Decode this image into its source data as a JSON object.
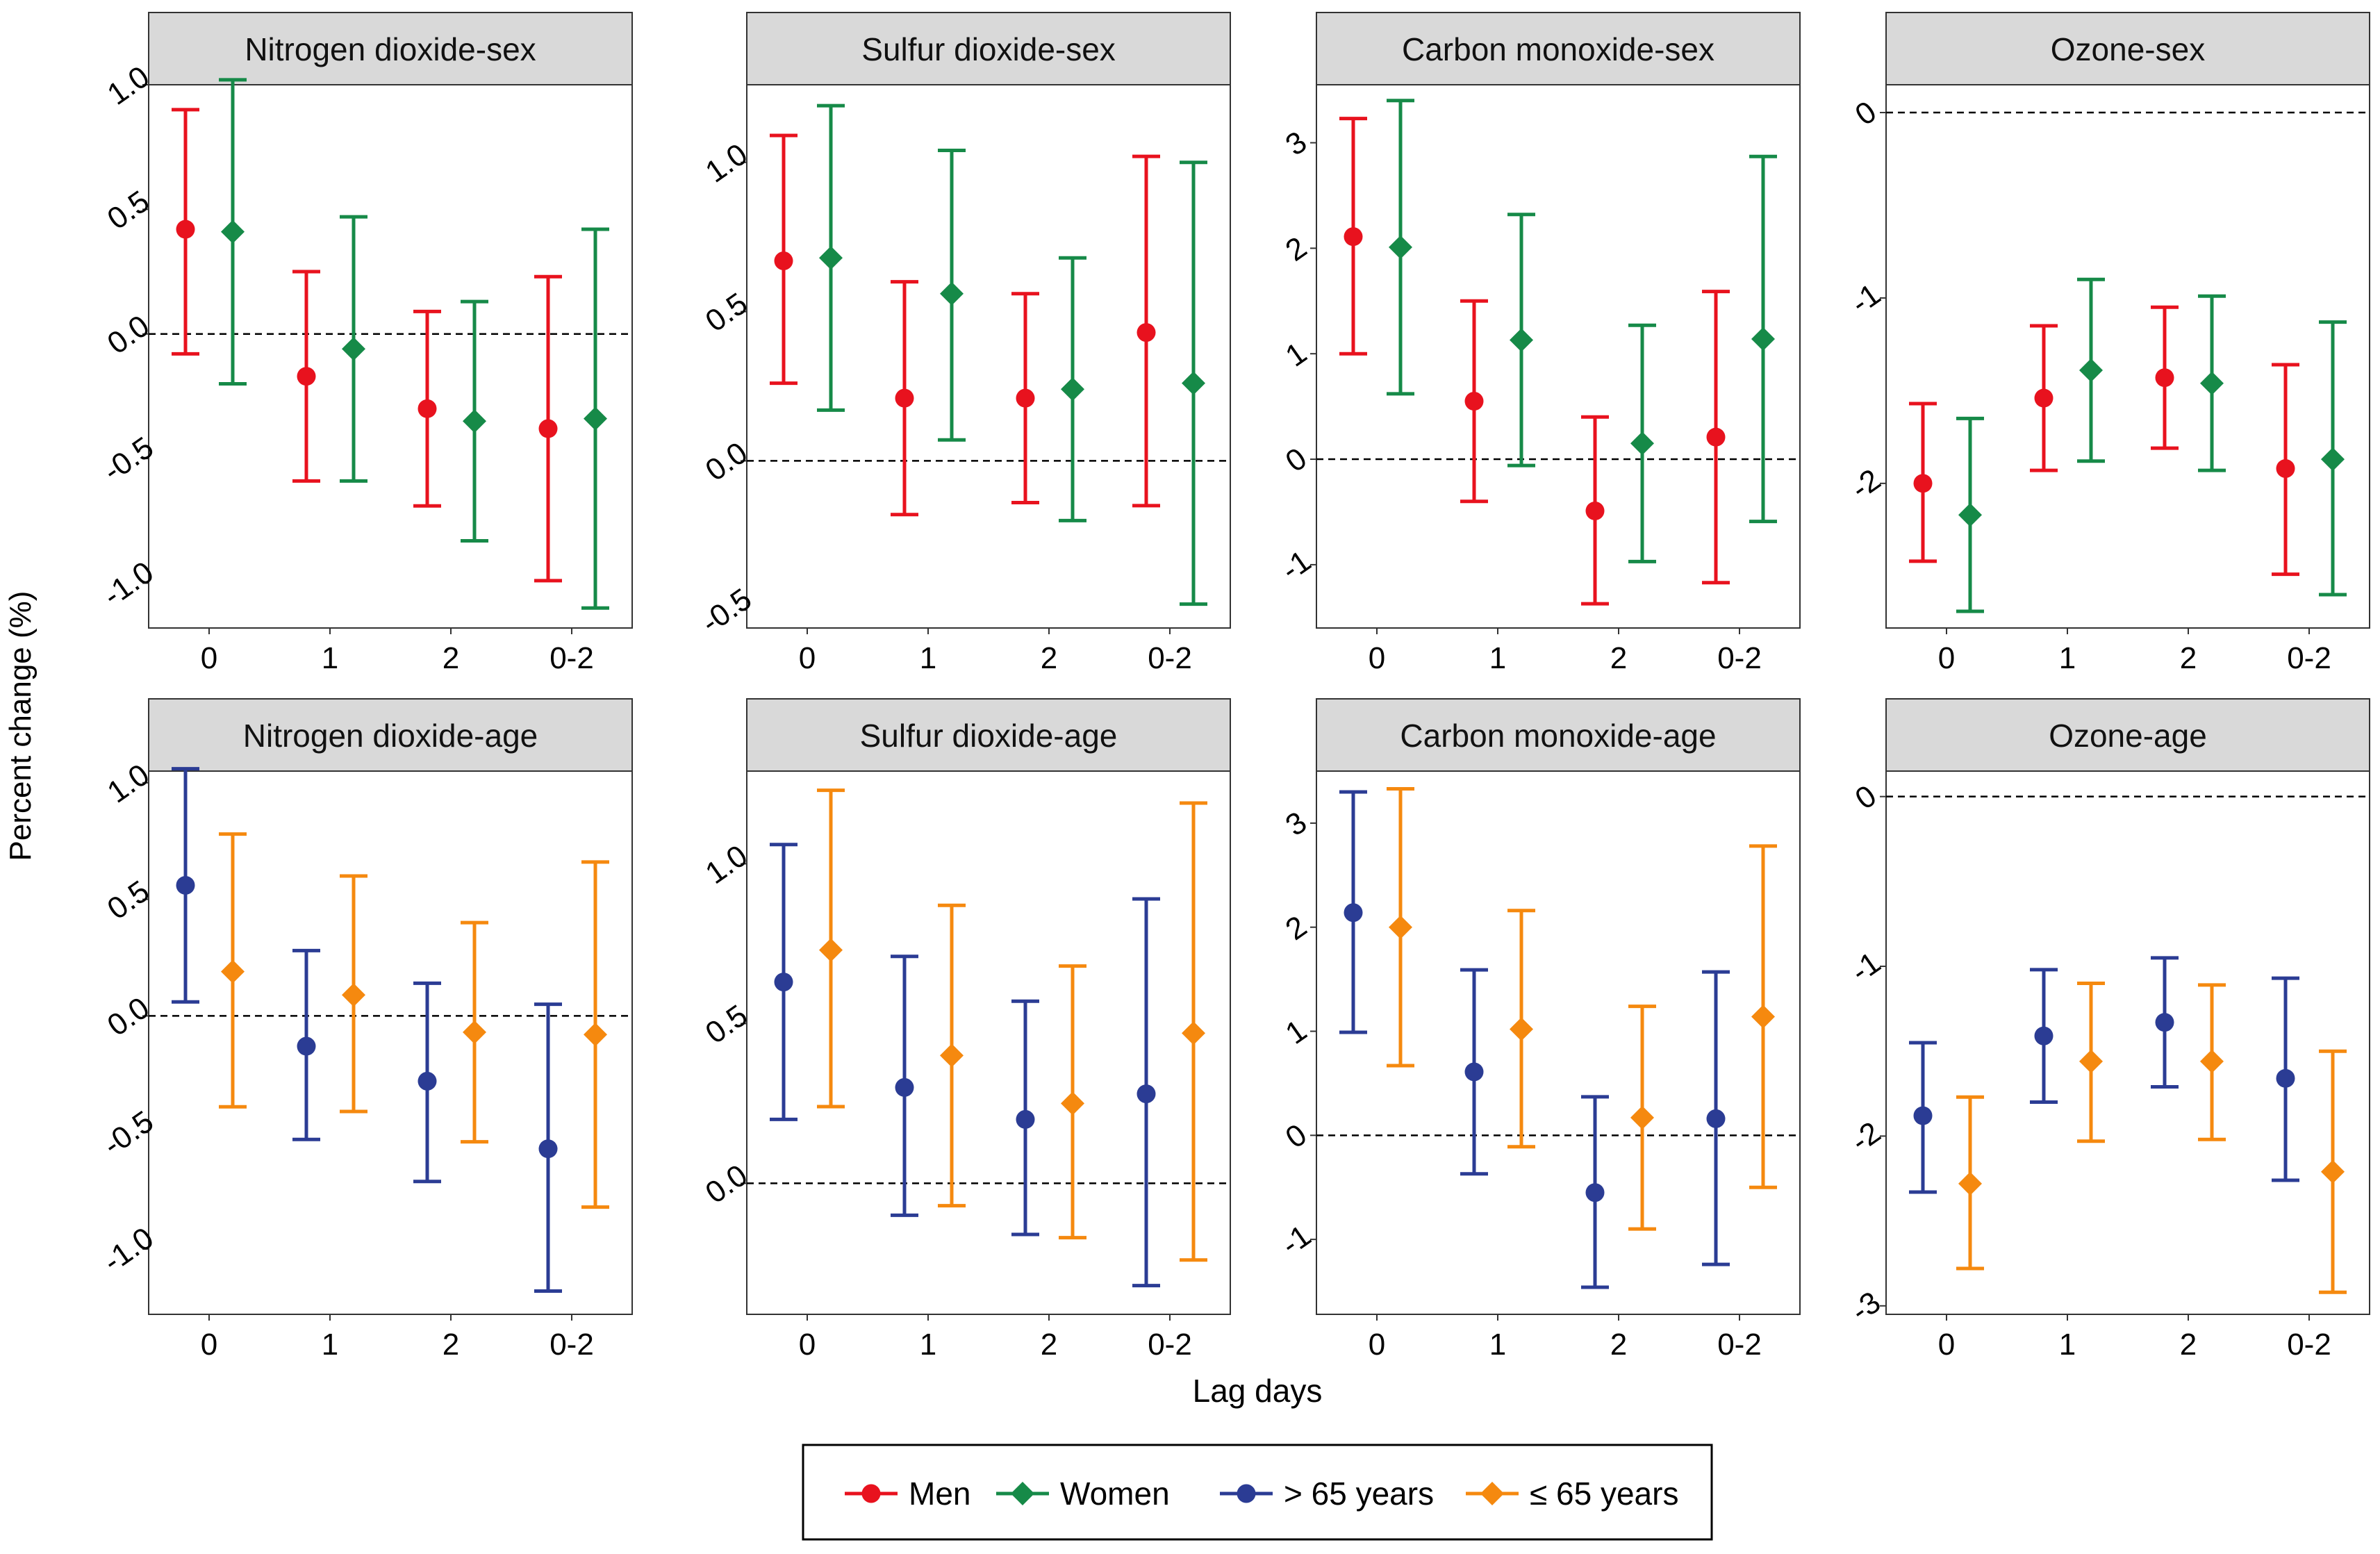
{
  "chart_data": {
    "type": "errorbar",
    "y_axis_label": "Percent change (%)",
    "x_axis_label": "Lag days",
    "categories": [
      "0",
      "1",
      "2",
      "0-2"
    ],
    "colors": {
      "Men": "#e8121e",
      "Women": "#168a48",
      "> 65 years": "#2b3c94",
      "≤ 65 years": "#f5890f"
    },
    "legend": [
      {
        "name": "Men",
        "shape": "circle",
        "color": "#e8121e"
      },
      {
        "name": "Women",
        "shape": "diamond",
        "color": "#168a48"
      },
      {
        "name": "> 65 years",
        "shape": "circle",
        "color": "#2b3c94"
      },
      {
        "name": "≤ 65 years",
        "shape": "diamond",
        "color": "#f5890f"
      }
    ],
    "panels": [
      {
        "title": "Nitrogen dioxide-sex",
        "ylim": [
          -1.18,
          1.0
        ],
        "ticks": [
          1.0,
          0.5,
          0.0,
          -0.5,
          -1.0
        ],
        "tick_labels": [
          "1.0",
          "0.5",
          "0.0",
          "-0.5",
          "-1.0"
        ],
        "series": [
          {
            "name": "Men",
            "shape": "circle",
            "points": [
              {
                "cat": "0",
                "est": 0.42,
                "lo": -0.08,
                "hi": 0.9
              },
              {
                "cat": "1",
                "est": -0.17,
                "lo": -0.59,
                "hi": 0.25
              },
              {
                "cat": "2",
                "est": -0.3,
                "lo": -0.69,
                "hi": 0.09
              },
              {
                "cat": "0-2",
                "est": -0.38,
                "lo": -0.99,
                "hi": 0.23
              }
            ]
          },
          {
            "name": "Women",
            "shape": "diamond",
            "points": [
              {
                "cat": "0",
                "est": 0.41,
                "lo": -0.2,
                "hi": 1.02
              },
              {
                "cat": "1",
                "est": -0.06,
                "lo": -0.59,
                "hi": 0.47
              },
              {
                "cat": "2",
                "est": -0.35,
                "lo": -0.83,
                "hi": 0.13
              },
              {
                "cat": "0-2",
                "est": -0.34,
                "lo": -1.1,
                "hi": 0.42
              }
            ]
          }
        ]
      },
      {
        "title": "Sulfur dioxide-sex",
        "ylim": [
          -0.56,
          1.26
        ],
        "ticks": [
          1.0,
          0.5,
          0.0,
          -0.5
        ],
        "tick_labels": [
          "1.0",
          "0.5",
          "0.0",
          "-0.5"
        ],
        "series": [
          {
            "name": "Men",
            "shape": "circle",
            "points": [
              {
                "cat": "0",
                "est": 0.67,
                "lo": 0.26,
                "hi": 1.09
              },
              {
                "cat": "1",
                "est": 0.21,
                "lo": -0.18,
                "hi": 0.6
              },
              {
                "cat": "2",
                "est": 0.21,
                "lo": -0.14,
                "hi": 0.56
              },
              {
                "cat": "0-2",
                "est": 0.43,
                "lo": -0.15,
                "hi": 1.02
              }
            ]
          },
          {
            "name": "Women",
            "shape": "diamond",
            "points": [
              {
                "cat": "0",
                "est": 0.68,
                "lo": 0.17,
                "hi": 1.19
              },
              {
                "cat": "1",
                "est": 0.56,
                "lo": 0.07,
                "hi": 1.04
              },
              {
                "cat": "2",
                "est": 0.24,
                "lo": -0.2,
                "hi": 0.68
              },
              {
                "cat": "0-2",
                "est": 0.26,
                "lo": -0.48,
                "hi": 1.0
              }
            ]
          }
        ]
      },
      {
        "title": "Carbon monoxide-sex",
        "ylim": [
          -1.6,
          3.55
        ],
        "ticks": [
          3,
          2,
          1,
          0,
          -1
        ],
        "tick_labels": [
          "3",
          "2",
          "1",
          "0",
          "-1"
        ],
        "series": [
          {
            "name": "Men",
            "shape": "circle",
            "points": [
              {
                "cat": "0",
                "est": 2.11,
                "lo": 1.0,
                "hi": 3.23
              },
              {
                "cat": "1",
                "est": 0.55,
                "lo": -0.4,
                "hi": 1.5
              },
              {
                "cat": "2",
                "est": -0.49,
                "lo": -1.37,
                "hi": 0.4
              },
              {
                "cat": "0-2",
                "est": 0.21,
                "lo": -1.17,
                "hi": 1.59
              }
            ]
          },
          {
            "name": "Women",
            "shape": "diamond",
            "points": [
              {
                "cat": "0",
                "est": 2.01,
                "lo": 0.62,
                "hi": 3.4
              },
              {
                "cat": "1",
                "est": 1.13,
                "lo": -0.06,
                "hi": 2.32
              },
              {
                "cat": "2",
                "est": 0.15,
                "lo": -0.97,
                "hi": 1.27
              },
              {
                "cat": "0-2",
                "est": 1.14,
                "lo": -0.59,
                "hi": 2.87
              }
            ]
          }
        ]
      },
      {
        "title": "Ozone-sex",
        "ylim": [
          -2.78,
          0.15
        ],
        "ticks": [
          0,
          -1,
          -2
        ],
        "tick_labels": [
          "0",
          "-1",
          "-2"
        ],
        "series": [
          {
            "name": "Men",
            "shape": "circle",
            "points": [
              {
                "cat": "0",
                "est": -2.0,
                "lo": -2.42,
                "hi": -1.57
              },
              {
                "cat": "1",
                "est": -1.54,
                "lo": -1.93,
                "hi": -1.15
              },
              {
                "cat": "2",
                "est": -1.43,
                "lo": -1.81,
                "hi": -1.05
              },
              {
                "cat": "0-2",
                "est": -1.92,
                "lo": -2.49,
                "hi": -1.36
              }
            ]
          },
          {
            "name": "Women",
            "shape": "diamond",
            "points": [
              {
                "cat": "0",
                "est": -2.17,
                "lo": -2.69,
                "hi": -1.65
              },
              {
                "cat": "1",
                "est": -1.39,
                "lo": -1.88,
                "hi": -0.9
              },
              {
                "cat": "2",
                "est": -1.46,
                "lo": -1.93,
                "hi": -0.99
              },
              {
                "cat": "0-2",
                "est": -1.87,
                "lo": -2.6,
                "hi": -1.13
              }
            ]
          }
        ]
      },
      {
        "title": "Nitrogen dioxide-age",
        "ylim": [
          -1.28,
          1.05
        ],
        "ticks": [
          1.0,
          0.5,
          0.0,
          -0.5,
          -1.0
        ],
        "tick_labels": [
          "1.0",
          "0.5",
          "0.0",
          "-0.5",
          "-1.0"
        ],
        "series": [
          {
            "name": "> 65 years",
            "shape": "circle",
            "points": [
              {
                "cat": "0",
                "est": 0.56,
                "lo": 0.06,
                "hi": 1.06
              },
              {
                "cat": "1",
                "est": -0.13,
                "lo": -0.53,
                "hi": 0.28
              },
              {
                "cat": "2",
                "est": -0.28,
                "lo": -0.71,
                "hi": 0.14
              },
              {
                "cat": "0-2",
                "est": -0.57,
                "lo": -1.18,
                "hi": 0.05
              }
            ]
          },
          {
            "name": "≤ 65 years",
            "shape": "diamond",
            "points": [
              {
                "cat": "0",
                "est": 0.19,
                "lo": -0.39,
                "hi": 0.78
              },
              {
                "cat": "1",
                "est": 0.09,
                "lo": -0.41,
                "hi": 0.6
              },
              {
                "cat": "2",
                "est": -0.07,
                "lo": -0.54,
                "hi": 0.4
              },
              {
                "cat": "0-2",
                "est": -0.08,
                "lo": -0.82,
                "hi": 0.66
              }
            ]
          }
        ]
      },
      {
        "title": "Sulfur dioxide-age",
        "ylim": [
          -0.41,
          1.29
        ],
        "ticks": [
          1.0,
          0.5,
          0.0
        ],
        "tick_labels": [
          "1.0",
          "0.5",
          "0.0"
        ],
        "series": [
          {
            "name": "> 65 years",
            "shape": "circle",
            "points": [
              {
                "cat": "0",
                "est": 0.63,
                "lo": 0.2,
                "hi": 1.06
              },
              {
                "cat": "1",
                "est": 0.3,
                "lo": -0.1,
                "hi": 0.71
              },
              {
                "cat": "2",
                "est": 0.2,
                "lo": -0.16,
                "hi": 0.57
              },
              {
                "cat": "0-2",
                "est": 0.28,
                "lo": -0.32,
                "hi": 0.89
              }
            ]
          },
          {
            "name": "≤ 65 years",
            "shape": "diamond",
            "points": [
              {
                "cat": "0",
                "est": 0.73,
                "lo": 0.24,
                "hi": 1.23
              },
              {
                "cat": "1",
                "est": 0.4,
                "lo": -0.07,
                "hi": 0.87
              },
              {
                "cat": "2",
                "est": 0.25,
                "lo": -0.17,
                "hi": 0.68
              },
              {
                "cat": "0-2",
                "est": 0.47,
                "lo": -0.24,
                "hi": 1.19
              }
            ]
          }
        ]
      },
      {
        "title": "Carbon monoxide-age",
        "ylim": [
          -1.72,
          3.5
        ],
        "ticks": [
          3,
          2,
          1,
          0,
          -1
        ],
        "tick_labels": [
          "3",
          "2",
          "1",
          "0",
          "-1"
        ],
        "series": [
          {
            "name": "> 65 years",
            "shape": "circle",
            "points": [
              {
                "cat": "0",
                "est": 2.14,
                "lo": 0.99,
                "hi": 3.3
              },
              {
                "cat": "1",
                "est": 0.61,
                "lo": -0.37,
                "hi": 1.59
              },
              {
                "cat": "2",
                "est": -0.55,
                "lo": -1.46,
                "hi": 0.37
              },
              {
                "cat": "0-2",
                "est": 0.16,
                "lo": -1.24,
                "hi": 1.57
              }
            ]
          },
          {
            "name": "≤ 65 years",
            "shape": "diamond",
            "points": [
              {
                "cat": "0",
                "est": 2.0,
                "lo": 0.67,
                "hi": 3.33
              },
              {
                "cat": "1",
                "est": 1.02,
                "lo": -0.11,
                "hi": 2.16
              },
              {
                "cat": "2",
                "est": 0.17,
                "lo": -0.9,
                "hi": 1.24
              },
              {
                "cat": "0-2",
                "est": 1.14,
                "lo": -0.5,
                "hi": 2.78
              }
            ]
          }
        ]
      },
      {
        "title": "Ozone-age",
        "ylim": [
          -3.05,
          0.15
        ],
        "ticks": [
          0,
          -1,
          -2,
          -3
        ],
        "tick_labels": [
          "0",
          "-1",
          "-2",
          "-3"
        ],
        "series": [
          {
            "name": "> 65 years",
            "shape": "circle",
            "points": [
              {
                "cat": "0",
                "est": -1.88,
                "lo": -2.33,
                "hi": -1.45
              },
              {
                "cat": "1",
                "est": -1.41,
                "lo": -1.8,
                "hi": -1.02
              },
              {
                "cat": "2",
                "est": -1.33,
                "lo": -1.71,
                "hi": -0.95
              },
              {
                "cat": "0-2",
                "est": -1.66,
                "lo": -2.26,
                "hi": -1.07
              }
            ]
          },
          {
            "name": "≤ 65 years",
            "shape": "diamond",
            "points": [
              {
                "cat": "0",
                "est": -2.28,
                "lo": -2.78,
                "hi": -1.77
              },
              {
                "cat": "1",
                "est": -1.56,
                "lo": -2.03,
                "hi": -1.1
              },
              {
                "cat": "2",
                "est": -1.56,
                "lo": -2.02,
                "hi": -1.11
              },
              {
                "cat": "0-2",
                "est": -2.21,
                "lo": -2.92,
                "hi": -1.5
              }
            ]
          }
        ]
      }
    ]
  }
}
